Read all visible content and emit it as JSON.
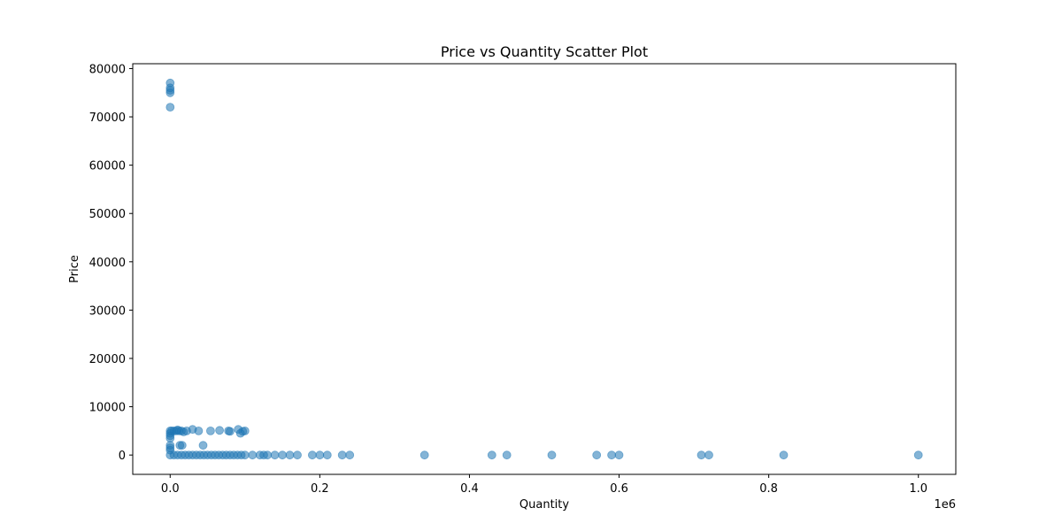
{
  "chart_data": {
    "type": "scatter",
    "title": "Price vs Quantity Scatter Plot",
    "xlabel": "Quantity",
    "ylabel": "Price",
    "x_offset_label": "1e6",
    "xlim": [
      -50000,
      1050000
    ],
    "ylim": [
      -4000,
      81000
    ],
    "xticks": [
      {
        "value": 0,
        "label": "0.0"
      },
      {
        "value": 200000,
        "label": "0.2"
      },
      {
        "value": 400000,
        "label": "0.4"
      },
      {
        "value": 600000,
        "label": "0.6"
      },
      {
        "value": 800000,
        "label": "0.8"
      },
      {
        "value": 1000000,
        "label": "1.0"
      }
    ],
    "yticks": [
      {
        "value": 0,
        "label": "0"
      },
      {
        "value": 10000,
        "label": "10000"
      },
      {
        "value": 20000,
        "label": "20000"
      },
      {
        "value": 30000,
        "label": "30000"
      },
      {
        "value": 40000,
        "label": "40000"
      },
      {
        "value": 50000,
        "label": "50000"
      },
      {
        "value": 60000,
        "label": "60000"
      },
      {
        "value": 70000,
        "label": "70000"
      },
      {
        "value": 80000,
        "label": "80000"
      }
    ],
    "grid": false,
    "marker_color": "#1f77b4",
    "marker_alpha": 0.55,
    "points": [
      [
        0,
        77000
      ],
      [
        0,
        76000
      ],
      [
        0,
        75500
      ],
      [
        0,
        75000
      ],
      [
        0,
        72000
      ],
      [
        0,
        5000
      ],
      [
        0,
        4500
      ],
      [
        0,
        4000
      ],
      [
        0,
        3500
      ],
      [
        0,
        2000
      ],
      [
        0,
        1500
      ],
      [
        0,
        1000
      ],
      [
        0,
        0
      ],
      [
        2000,
        5000
      ],
      [
        5000,
        5000
      ],
      [
        8000,
        5000
      ],
      [
        10000,
        5200
      ],
      [
        12000,
        5000
      ],
      [
        15000,
        5000
      ],
      [
        18000,
        4800
      ],
      [
        22000,
        5000
      ],
      [
        30000,
        5300
      ],
      [
        38000,
        5000
      ],
      [
        54000,
        5000
      ],
      [
        66000,
        5100
      ],
      [
        78000,
        5000
      ],
      [
        80000,
        4900
      ],
      [
        91000,
        5300
      ],
      [
        94000,
        4500
      ],
      [
        97000,
        4900
      ],
      [
        100000,
        5000
      ],
      [
        13000,
        2000
      ],
      [
        16000,
        2000
      ],
      [
        44000,
        2000
      ],
      [
        5000,
        0
      ],
      [
        10000,
        0
      ],
      [
        15000,
        0
      ],
      [
        20000,
        0
      ],
      [
        25000,
        0
      ],
      [
        30000,
        0
      ],
      [
        35000,
        0
      ],
      [
        40000,
        0
      ],
      [
        45000,
        0
      ],
      [
        50000,
        0
      ],
      [
        55000,
        0
      ],
      [
        60000,
        0
      ],
      [
        65000,
        0
      ],
      [
        70000,
        0
      ],
      [
        75000,
        0
      ],
      [
        80000,
        0
      ],
      [
        85000,
        0
      ],
      [
        90000,
        0
      ],
      [
        95000,
        0
      ],
      [
        100000,
        0
      ],
      [
        110000,
        0
      ],
      [
        120000,
        0
      ],
      [
        125000,
        0
      ],
      [
        130000,
        0
      ],
      [
        140000,
        0
      ],
      [
        150000,
        0
      ],
      [
        160000,
        0
      ],
      [
        170000,
        0
      ],
      [
        190000,
        0
      ],
      [
        200000,
        0
      ],
      [
        210000,
        0
      ],
      [
        230000,
        0
      ],
      [
        240000,
        0
      ],
      [
        340000,
        0
      ],
      [
        430000,
        0
      ],
      [
        450000,
        0
      ],
      [
        510000,
        0
      ],
      [
        570000,
        0
      ],
      [
        590000,
        0
      ],
      [
        600000,
        0
      ],
      [
        710000,
        0
      ],
      [
        720000,
        0
      ],
      [
        820000,
        0
      ],
      [
        1000000,
        0
      ]
    ]
  }
}
